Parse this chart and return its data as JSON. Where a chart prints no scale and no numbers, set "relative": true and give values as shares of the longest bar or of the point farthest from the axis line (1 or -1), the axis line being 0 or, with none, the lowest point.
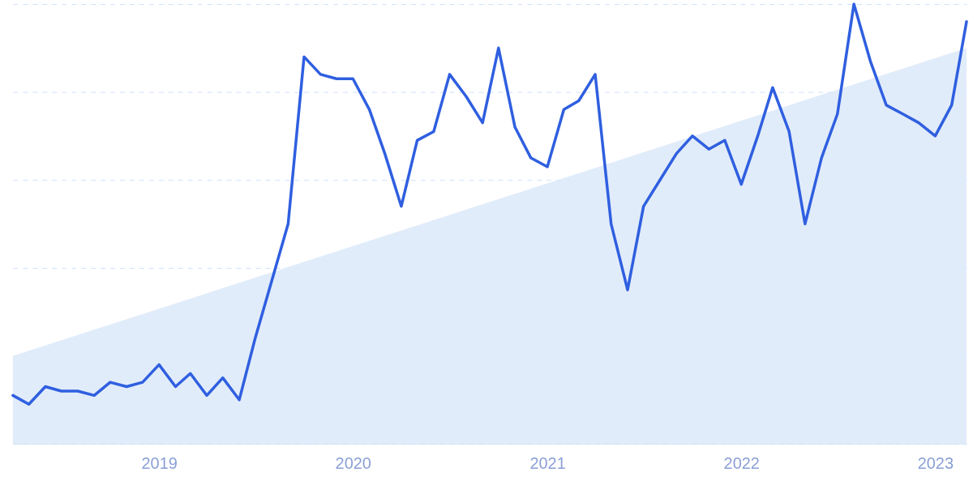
{
  "chart_data": {
    "type": "line",
    "relative": true,
    "grid": "y",
    "xlim": [
      "2018-04",
      "2023-03"
    ],
    "xticks": [
      "2019",
      "2020",
      "2021",
      "2022",
      "2023"
    ],
    "series": [
      {
        "type": "area",
        "color": "#dce9f9",
        "x": [
          "2018-04",
          "2023-03"
        ],
        "values": [
          0.2,
          0.9
        ]
      },
      {
        "color": "#2f5fe0",
        "x": [
          "2018-04",
          "2018-05",
          "2018-06",
          "2018-07",
          "2018-08",
          "2018-09",
          "2018-10",
          "2018-11",
          "2018-12",
          "2019-01",
          "2019-02",
          "2019-03",
          "2019-04",
          "2019-05",
          "2019-06",
          "2019-07",
          "2019-08",
          "2019-09",
          "2019-10",
          "2019-11",
          "2019-12",
          "2020-01",
          "2020-02",
          "2020-03",
          "2020-04",
          "2020-05",
          "2020-06",
          "2020-07",
          "2020-08",
          "2020-09",
          "2020-10",
          "2020-11",
          "2020-12",
          "2021-01",
          "2021-02",
          "2021-03",
          "2021-04",
          "2021-05",
          "2021-06",
          "2021-07",
          "2021-08",
          "2021-09",
          "2021-10",
          "2021-11",
          "2021-12",
          "2022-01",
          "2022-02",
          "2022-03",
          "2022-04",
          "2022-05",
          "2022-06",
          "2022-07",
          "2022-08",
          "2022-09",
          "2022-10",
          "2022-11",
          "2022-12",
          "2023-01",
          "2023-02",
          "2023-03"
        ],
        "values": [
          0.11,
          0.09,
          0.13,
          0.12,
          0.12,
          0.11,
          0.14,
          0.13,
          0.14,
          0.18,
          0.13,
          0.16,
          0.11,
          0.15,
          0.1,
          0.24,
          0.37,
          0.5,
          0.88,
          0.84,
          0.83,
          0.83,
          0.76,
          0.66,
          0.54,
          0.69,
          0.71,
          0.84,
          0.79,
          0.73,
          0.9,
          0.72,
          0.65,
          0.63,
          0.76,
          0.78,
          0.84,
          0.5,
          0.35,
          0.54,
          0.6,
          0.66,
          0.7,
          0.67,
          0.69,
          0.59,
          0.7,
          0.81,
          0.71,
          0.5,
          0.65,
          0.75,
          1,
          0.87,
          0.77,
          0.75,
          0.73,
          0.7,
          0.77,
          0.96
        ]
      }
    ]
  }
}
